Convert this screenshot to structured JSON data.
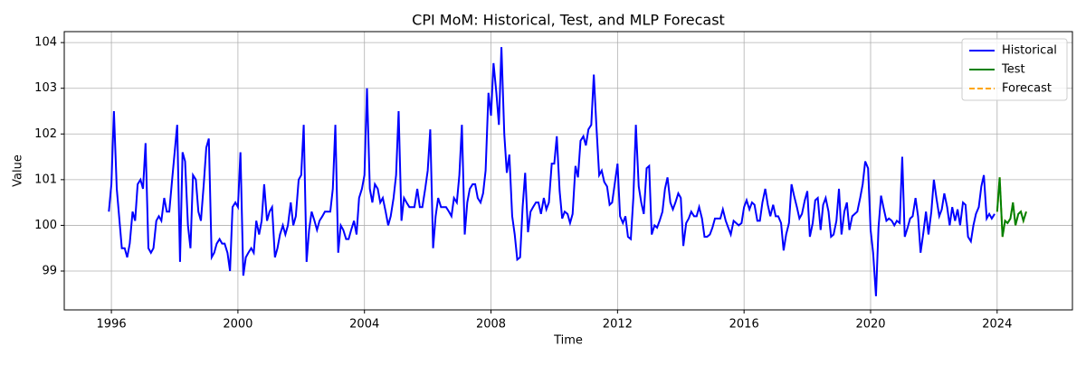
{
  "chart_data": {
    "type": "line",
    "title": "CPI MoM: Historical, Test, and MLP Forecast",
    "xlabel": "Time",
    "ylabel": "Value",
    "xlim": [
      1994.51,
      2026.38
    ],
    "xticks": [
      1996,
      2000,
      2004,
      2008,
      2012,
      2016,
      2020,
      2024
    ],
    "ylim": [
      98.15,
      104.24
    ],
    "yticks": [
      99,
      100,
      101,
      102,
      103,
      104
    ],
    "grid": true,
    "legend": "upper-right",
    "series": [
      {
        "name": "Historical",
        "color": "#0000ff",
        "dash": false,
        "x": [
          1995.92,
          1996.0,
          1996.08,
          1996.17,
          1996.33,
          1996.42,
          1996.5,
          1996.58,
          1996.67,
          1996.75,
          1996.83,
          1996.92,
          1997.0,
          1997.08,
          1997.17,
          1997.25,
          1997.33,
          1997.42,
          1997.5,
          1997.58,
          1997.67,
          1997.75,
          1997.83,
          1997.92,
          1998.0,
          1998.08,
          1998.17,
          1998.25,
          1998.33,
          1998.42,
          1998.5,
          1998.58,
          1998.67,
          1998.75,
          1998.83,
          1998.92,
          1999.0,
          1999.08,
          1999.17,
          1999.25,
          1999.33,
          1999.42,
          1999.5,
          1999.58,
          1999.67,
          1999.75,
          1999.83,
          1999.92,
          2000.0,
          2000.08,
          2000.17,
          2000.25,
          2000.33,
          2000.42,
          2000.5,
          2000.58,
          2000.67,
          2000.75,
          2000.83,
          2000.92,
          2001.0,
          2001.08,
          2001.17,
          2001.25,
          2001.33,
          2001.42,
          2001.5,
          2001.58,
          2001.67,
          2001.75,
          2001.83,
          2001.92,
          2002.0,
          2002.08,
          2002.17,
          2002.25,
          2002.33,
          2002.42,
          2002.5,
          2002.58,
          2002.67,
          2002.75,
          2002.83,
          2002.92,
          2003.0,
          2003.08,
          2003.17,
          2003.25,
          2003.33,
          2003.42,
          2003.5,
          2003.58,
          2003.67,
          2003.75,
          2003.83,
          2003.92,
          2004.0,
          2004.08,
          2004.17,
          2004.25,
          2004.33,
          2004.42,
          2004.5,
          2004.58,
          2004.67,
          2004.75,
          2004.83,
          2004.92,
          2005.0,
          2005.08,
          2005.17,
          2005.25,
          2005.33,
          2005.42,
          2005.5,
          2005.58,
          2005.67,
          2005.75,
          2005.83,
          2005.92,
          2006.0,
          2006.08,
          2006.17,
          2006.25,
          2006.33,
          2006.42,
          2006.5,
          2006.58,
          2006.67,
          2006.75,
          2006.83,
          2006.92,
          2007.0,
          2007.08,
          2007.17,
          2007.25,
          2007.33,
          2007.42,
          2007.5,
          2007.58,
          2007.67,
          2007.75,
          2007.83,
          2007.92,
          2008.0,
          2008.08,
          2008.17,
          2008.25,
          2008.33,
          2008.42,
          2008.5,
          2008.58,
          2008.67,
          2008.75,
          2008.83,
          2008.92,
          2009.0,
          2009.08,
          2009.17,
          2009.25,
          2009.33,
          2009.42,
          2009.5,
          2009.58,
          2009.67,
          2009.75,
          2009.83,
          2009.92,
          2010.0,
          2010.08,
          2010.17,
          2010.25,
          2010.33,
          2010.42,
          2010.5,
          2010.58,
          2010.67,
          2010.75,
          2010.83,
          2010.92,
          2011.0,
          2011.08,
          2011.17,
          2011.25,
          2011.33,
          2011.42,
          2011.5,
          2011.58,
          2011.67,
          2011.75,
          2011.83,
          2011.92,
          2012.0,
          2012.08,
          2012.17,
          2012.25,
          2012.33,
          2012.42,
          2012.5,
          2012.58,
          2012.67,
          2012.75,
          2012.83,
          2012.92,
          2013.0,
          2013.08,
          2013.17,
          2013.25,
          2013.33,
          2013.42,
          2013.5,
          2013.58,
          2013.67,
          2013.75,
          2013.83,
          2013.92,
          2014.0,
          2014.08,
          2014.17,
          2014.25,
          2014.33,
          2014.42,
          2014.5,
          2014.58,
          2014.67,
          2014.75,
          2014.83,
          2014.92,
          2015.0,
          2015.08,
          2015.17,
          2015.25,
          2015.33,
          2015.42,
          2015.58,
          2015.67,
          2015.75,
          2015.83,
          2015.92,
          2016.0,
          2016.08,
          2016.17,
          2016.25,
          2016.33,
          2016.42,
          2016.5,
          2016.58,
          2016.67,
          2016.75,
          2016.83,
          2016.92,
          2017.0,
          2017.08,
          2017.17,
          2017.25,
          2017.33,
          2017.42,
          2017.5,
          2017.58,
          2017.67,
          2017.75,
          2017.83,
          2017.92,
          2018.0,
          2018.08,
          2018.17,
          2018.25,
          2018.33,
          2018.42,
          2018.5,
          2018.58,
          2018.67,
          2018.75,
          2018.83,
          2018.92,
          2019.0,
          2019.08,
          2019.17,
          2019.25,
          2019.33,
          2019.42,
          2019.5,
          2019.58,
          2019.67,
          2019.75,
          2019.83,
          2019.92,
          2020.0,
          2020.08,
          2020.17,
          2020.25,
          2020.33,
          2020.42,
          2020.5,
          2020.58,
          2020.67,
          2020.75,
          2020.83,
          2020.92,
          2021.0,
          2021.08,
          2021.17,
          2021.25,
          2021.33,
          2021.42,
          2021.5,
          2021.58,
          2021.67,
          2021.75,
          2021.83,
          2021.92,
          2022.0,
          2022.08,
          2022.17,
          2022.25,
          2022.33,
          2022.42,
          2022.5,
          2022.58,
          2022.67,
          2022.75,
          2022.83,
          2022.92,
          2023.0,
          2023.08,
          2023.17,
          2023.25,
          2023.33,
          2023.42,
          2023.5,
          2023.58,
          2023.67,
          2023.75,
          2023.83,
          2023.92
        ],
        "values": [
          100.3,
          100.9,
          102.5,
          100.8,
          99.5,
          99.5,
          99.3,
          99.6,
          100.3,
          100.1,
          100.9,
          101.0,
          100.8,
          101.8,
          99.5,
          99.4,
          99.5,
          100.1,
          100.2,
          100.1,
          100.6,
          100.3,
          100.3,
          101.0,
          101.6,
          102.2,
          99.2,
          101.6,
          101.4,
          100.0,
          99.5,
          101.1,
          101.0,
          100.3,
          100.1,
          100.9,
          101.7,
          101.9,
          99.3,
          99.4,
          99.6,
          99.7,
          99.6,
          99.6,
          99.4,
          99.0,
          100.4,
          100.5,
          100.4,
          101.6,
          98.9,
          99.3,
          99.4,
          99.5,
          99.4,
          100.1,
          99.8,
          100.1,
          100.9,
          100.1,
          100.3,
          100.4,
          99.3,
          99.5,
          99.8,
          100.0,
          99.8,
          100.0,
          100.5,
          100.0,
          100.2,
          101.0,
          101.1,
          102.2,
          99.2,
          99.9,
          100.3,
          100.1,
          99.9,
          100.1,
          100.2,
          100.3,
          100.3,
          100.3,
          100.8,
          102.2,
          99.4,
          100.0,
          99.9,
          99.7,
          99.7,
          99.9,
          100.1,
          99.8,
          100.6,
          100.8,
          101.1,
          103.0,
          100.8,
          100.5,
          100.9,
          100.8,
          100.5,
          100.6,
          100.3,
          100.0,
          100.2,
          100.6,
          101.1,
          102.5,
          100.1,
          100.6,
          100.5,
          100.4,
          100.4,
          100.4,
          100.8,
          100.4,
          100.4,
          100.8,
          101.2,
          102.1,
          99.5,
          100.2,
          100.6,
          100.4,
          100.4,
          100.4,
          100.3,
          100.2,
          100.6,
          100.5,
          101.1,
          102.2,
          99.8,
          100.5,
          100.8,
          100.9,
          100.9,
          100.6,
          100.5,
          100.7,
          101.2,
          102.9,
          102.4,
          103.55,
          102.9,
          102.2,
          103.9,
          102.0,
          101.15,
          101.55,
          100.2,
          99.8,
          99.25,
          99.3,
          100.4,
          101.15,
          99.85,
          100.3,
          100.4,
          100.5,
          100.5,
          100.25,
          100.6,
          100.35,
          100.5,
          101.35,
          101.35,
          101.95,
          100.75,
          100.15,
          100.3,
          100.25,
          100.05,
          100.25,
          101.3,
          101.05,
          101.85,
          101.95,
          101.75,
          102.1,
          102.2,
          103.3,
          102.2,
          101.1,
          101.2,
          100.95,
          100.85,
          100.45,
          100.5,
          100.95,
          101.35,
          100.2,
          100.05,
          100.2,
          99.75,
          99.7,
          100.6,
          102.2,
          100.85,
          100.5,
          100.25,
          101.25,
          101.3,
          99.8,
          100.0,
          99.95,
          100.1,
          100.3,
          100.8,
          101.05,
          100.5,
          100.35,
          100.5,
          100.7,
          100.6,
          99.55,
          100.05,
          100.15,
          100.3,
          100.2,
          100.2,
          100.4,
          100.15,
          99.75,
          99.75,
          99.8,
          99.95,
          100.15,
          100.15,
          100.15,
          100.35,
          100.1,
          99.8,
          100.1,
          100.05,
          100.0,
          100.05,
          100.4,
          100.55,
          100.35,
          100.5,
          100.45,
          100.1,
          100.1,
          100.5,
          100.8,
          100.45,
          100.2,
          100.45,
          100.2,
          100.2,
          100.05,
          99.45,
          99.8,
          100.05,
          100.9,
          100.65,
          100.4,
          100.15,
          100.25,
          100.55,
          100.75,
          99.75,
          100.05,
          100.55,
          100.6,
          99.9,
          100.45,
          100.6,
          100.3,
          99.75,
          99.8,
          100.1,
          100.8,
          99.8,
          100.3,
          100.5,
          99.9,
          100.2,
          100.25,
          100.3,
          100.6,
          100.9,
          101.4,
          101.25,
          99.9,
          99.4,
          98.45,
          99.95,
          100.65,
          100.35,
          100.1,
          100.15,
          100.1,
          100.0,
          100.1,
          100.05,
          101.5,
          99.75,
          99.95,
          100.15,
          100.2,
          100.6,
          100.2,
          99.4,
          99.85,
          100.3,
          99.8,
          100.3,
          101.0,
          100.6,
          100.2,
          100.35,
          100.7,
          100.4,
          100.0,
          100.4,
          100.1,
          100.35,
          100.0,
          100.5,
          100.45,
          99.75,
          99.65,
          100.0,
          100.25,
          100.4,
          100.85,
          101.1,
          100.15,
          100.25,
          100.15,
          100.25
        ]
      },
      {
        "name": "Forecast",
        "color": "#ffa500",
        "dash": true,
        "x": [
          2024.0,
          2024.08,
          2024.17,
          2024.25,
          2024.33,
          2024.42,
          2024.5,
          2024.58,
          2024.67,
          2024.75,
          2024.83,
          2024.92
        ],
        "values": [
          100.3,
          101.05,
          99.75,
          100.1,
          100.05,
          100.15,
          100.5,
          100.0,
          100.25,
          100.3,
          100.1,
          100.3
        ]
      },
      {
        "name": "Test",
        "color": "#008000",
        "dash": false,
        "x": [
          2024.0,
          2024.08,
          2024.17,
          2024.25,
          2024.33,
          2024.42,
          2024.5,
          2024.58,
          2024.67,
          2024.75,
          2024.83,
          2024.92
        ],
        "values": [
          100.3,
          101.05,
          99.75,
          100.1,
          100.05,
          100.15,
          100.5,
          100.0,
          100.25,
          100.3,
          100.1,
          100.3
        ]
      }
    ],
    "legend_order": [
      0,
      2,
      1
    ]
  }
}
